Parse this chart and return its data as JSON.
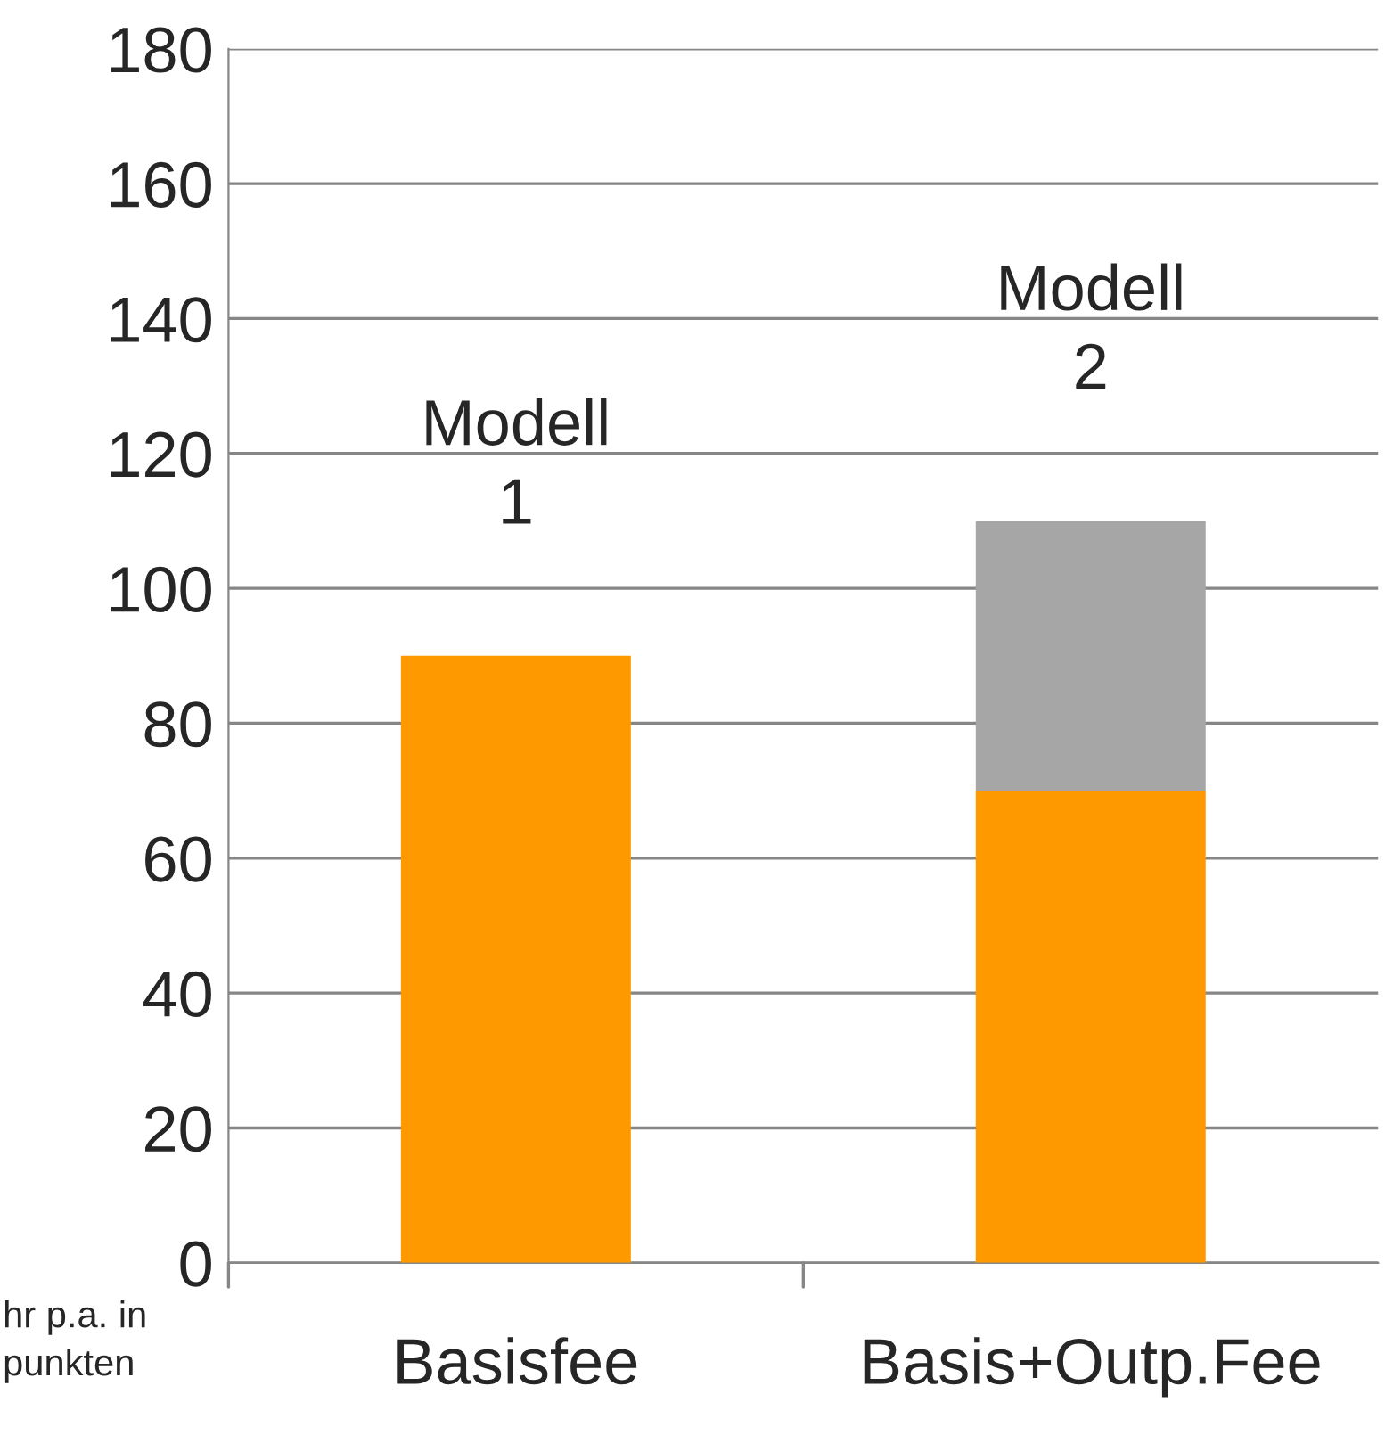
{
  "chart_data": {
    "type": "bar",
    "stacked": true,
    "categories": [
      "Basisfee",
      "Basis+Outp.Fee"
    ],
    "series": [
      {
        "color": "#ff9900",
        "values": [
          90,
          70
        ]
      },
      {
        "color": "#a6a6a6",
        "values": [
          null,
          40
        ]
      }
    ],
    "ylabel": "hr p.a. in\npunkten",
    "ylim": [
      0,
      180
    ],
    "yticks": [
      0,
      20,
      40,
      60,
      80,
      100,
      120,
      140,
      160,
      180
    ],
    "grid": "y",
    "legend": false,
    "annotations": [
      "Modell\n1",
      "Modell\n2"
    ]
  }
}
